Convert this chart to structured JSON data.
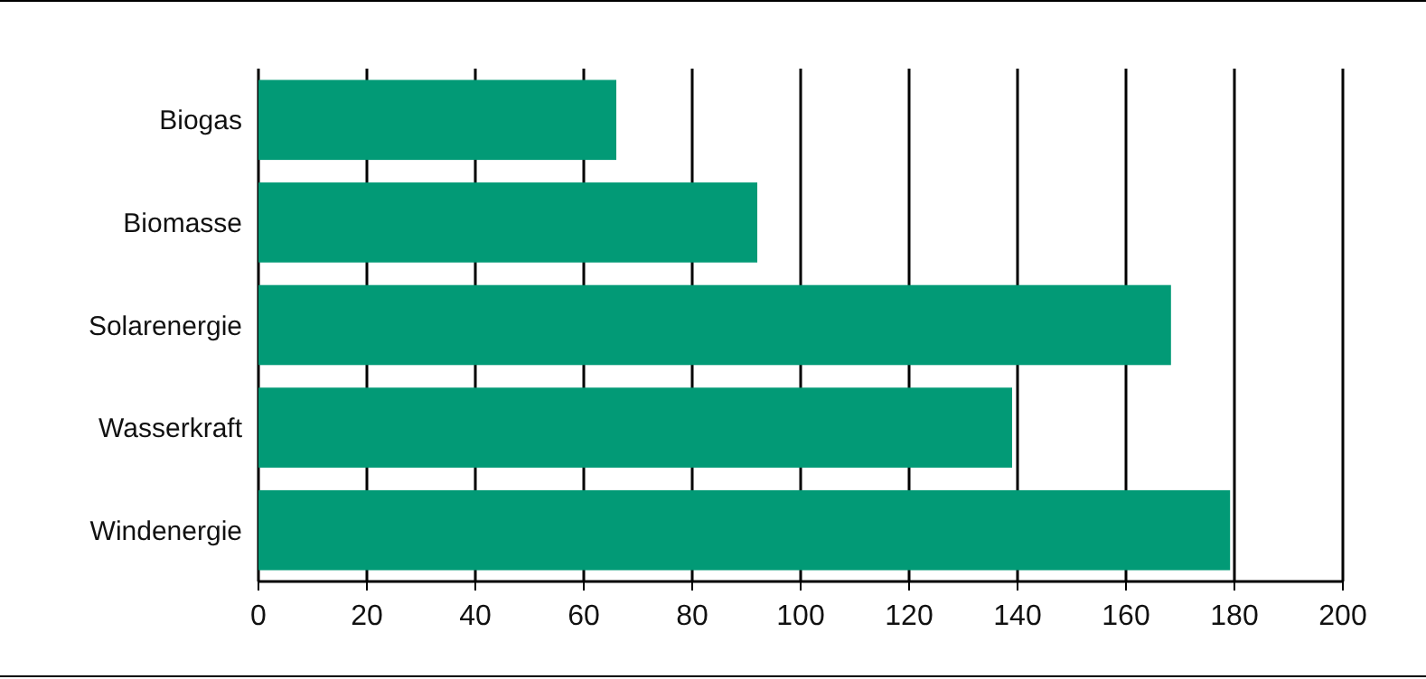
{
  "chart_data": {
    "type": "bar",
    "orientation": "horizontal",
    "categories": [
      "Biogas",
      "Biomasse",
      "Solarenergie",
      "Wasserkraft",
      "Windenergie"
    ],
    "values": [
      66,
      92,
      168.3,
      139,
      179.2
    ],
    "color": "#029a76",
    "xlim": [
      0,
      200
    ],
    "xticks": [
      0,
      20,
      40,
      60,
      80,
      100,
      120,
      140,
      160,
      180,
      200
    ],
    "grid": "x"
  }
}
